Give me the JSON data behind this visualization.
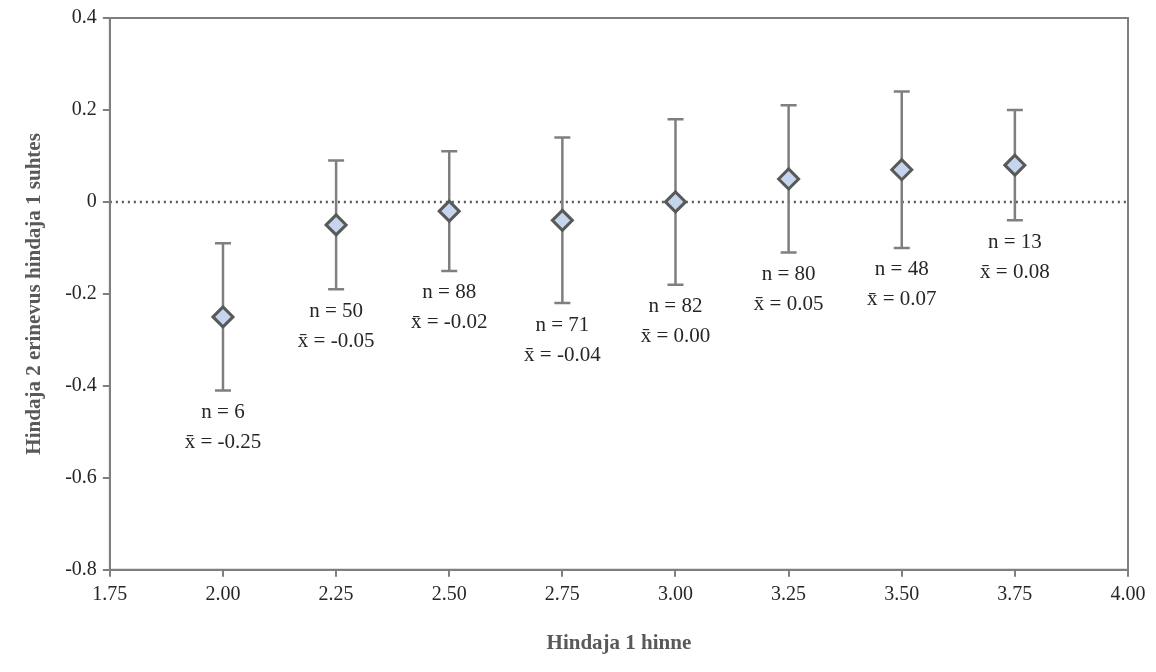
{
  "chart_data": {
    "type": "scatter",
    "xlabel": "Hindaja 1 hinne",
    "ylabel": "Hindaja 2 erinevus hindaja 1 suhtes",
    "x": [
      2.0,
      2.25,
      2.5,
      2.75,
      3.0,
      3.25,
      3.5,
      3.75
    ],
    "values": [
      -0.25,
      -0.05,
      -0.02,
      -0.04,
      0.0,
      0.05,
      0.07,
      0.08
    ],
    "errors": [
      0.16,
      0.14,
      0.13,
      0.18,
      0.18,
      0.16,
      0.17,
      0.12
    ],
    "color": "#c5d5ee",
    "marker": "diamond",
    "xlim": [
      1.75,
      4.0
    ],
    "xticks": [
      {
        "value": 1.75,
        "label": "1.75"
      },
      {
        "value": 2.0,
        "label": "2.00"
      },
      {
        "value": 2.25,
        "label": "2.25"
      },
      {
        "value": 2.5,
        "label": "2.50"
      },
      {
        "value": 2.75,
        "label": "2.75"
      },
      {
        "value": 3.0,
        "label": "3.00"
      },
      {
        "value": 3.25,
        "label": "3.25"
      },
      {
        "value": 3.5,
        "label": "3.50"
      },
      {
        "value": 3.75,
        "label": "3.75"
      },
      {
        "value": 4.0,
        "label": "4.00"
      }
    ],
    "ylim": [
      -0.8,
      0.4
    ],
    "yticks": [
      -0.8,
      -0.6,
      -0.4,
      -0.2,
      0,
      0.2,
      0.4
    ],
    "grid": false,
    "legend": false,
    "ref_lines": [
      {
        "axis": "y",
        "value": 0,
        "color": "#595959",
        "line_style": "dotted"
      }
    ],
    "annotations": [
      "n = 6\nx̄ = -0.25",
      "n = 50\nx̄ = -0.05",
      "n = 88\nx̄ = -0.02",
      "n = 71\nx̄ = -0.04",
      "n = 82\nx̄ = 0.00",
      "n = 80\nx̄ = 0.05",
      "n = 48\nx̄ = 0.07",
      "n = 13\nx̄ = 0.08"
    ]
  }
}
